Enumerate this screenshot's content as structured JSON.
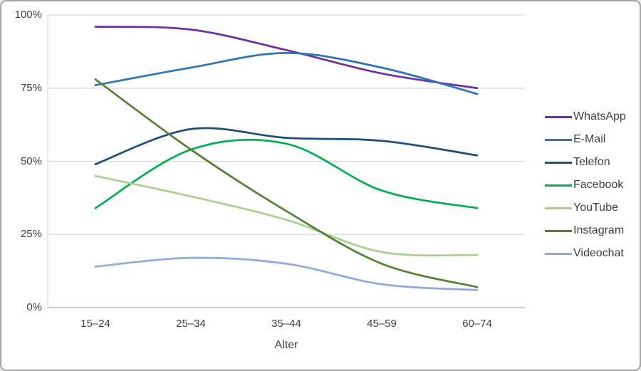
{
  "window": {
    "background": "#ffffff",
    "border_color": "#a6a6a6"
  },
  "chart_data": {
    "type": "line",
    "title": "",
    "xlabel": "Alter",
    "ylabel": "",
    "categories": [
      "15–24",
      "25–34",
      "35–44",
      "45–59",
      "60–74"
    ],
    "y_ticks": [
      {
        "value": 0,
        "label": "0%"
      },
      {
        "value": 25,
        "label": "25%"
      },
      {
        "value": 50,
        "label": "50%"
      },
      {
        "value": 75,
        "label": "75%"
      },
      {
        "value": 100,
        "label": "100%"
      }
    ],
    "ylim": [
      0,
      100
    ],
    "grid": "horizontal",
    "smooth_lines": true,
    "legend_position": "right",
    "series": [
      {
        "name": "WhatsApp",
        "color": "#7030A0",
        "values": [
          96,
          95,
          88,
          80,
          75
        ]
      },
      {
        "name": "E-Mail",
        "color": "#2E75B6",
        "values": [
          76,
          82,
          87,
          82,
          73
        ]
      },
      {
        "name": "Telefon",
        "color": "#1F4E79",
        "values": [
          49,
          61,
          58,
          57,
          52
        ]
      },
      {
        "name": "Facebook",
        "color": "#00B050",
        "values": [
          34,
          54,
          56,
          40,
          34
        ]
      },
      {
        "name": "YouTube",
        "color": "#A9D18E",
        "values": [
          45,
          38,
          30,
          19,
          18
        ]
      },
      {
        "name": "Instagram",
        "color": "#538135",
        "values": [
          78,
          54,
          33,
          15,
          7
        ]
      },
      {
        "name": "Videochat",
        "color": "#8FAADC",
        "values": [
          14,
          17,
          15,
          8,
          6
        ]
      }
    ],
    "colors": {
      "gridline": "#D9D9D9",
      "axis_line": "#BFBFBF",
      "label": "#404040"
    }
  }
}
